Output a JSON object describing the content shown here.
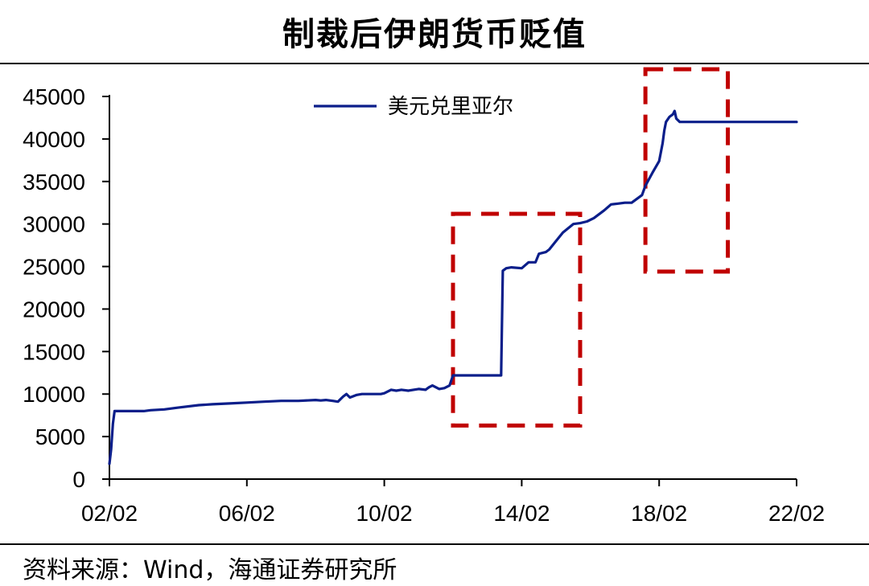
{
  "header": {
    "title": "制裁后伊朗货币贬值"
  },
  "footer": {
    "source": "资料来源：Wind，海通证券研究所"
  },
  "colors": {
    "series": "#0b1e8a",
    "highlight_box": "#c00000",
    "axis": "#000000"
  },
  "chart_data": {
    "type": "line",
    "title": "制裁后伊朗货币贬值",
    "xlabel": "",
    "ylabel": "",
    "ylim": [
      0,
      45000
    ],
    "yticks": [
      0,
      5000,
      10000,
      15000,
      20000,
      25000,
      30000,
      35000,
      40000,
      45000
    ],
    "ytick_labels": [
      "0",
      "5000",
      "10000",
      "15000",
      "20000",
      "25000",
      "30000",
      "35000",
      "40000",
      "45000"
    ],
    "xlim": [
      2,
      22
    ],
    "xticks": [
      2,
      6,
      10,
      14,
      18,
      22
    ],
    "xtick_labels": [
      "02/02",
      "06/02",
      "10/02",
      "14/02",
      "18/02",
      "22/02"
    ],
    "grid": false,
    "legend": "top-center",
    "series": [
      {
        "name": "美元兑里亚尔",
        "x": [
          2.0,
          2.05,
          2.1,
          2.15,
          2.25,
          3.0,
          3.2,
          3.6,
          4.0,
          4.6,
          5.0,
          5.5,
          6.0,
          6.5,
          7.0,
          7.5,
          8.0,
          8.15,
          8.3,
          8.5,
          8.65,
          8.8,
          8.9,
          9.0,
          9.2,
          9.35,
          9.5,
          9.7,
          9.9,
          10.0,
          10.2,
          10.35,
          10.5,
          10.7,
          11.0,
          11.2,
          11.3,
          11.4,
          11.6,
          11.75,
          11.9,
          12.0,
          12.2,
          13.4,
          13.45,
          13.55,
          13.7,
          14.0,
          14.2,
          14.4,
          14.5,
          14.7,
          14.8,
          14.9,
          15.0,
          15.2,
          15.5,
          15.7,
          15.9,
          16.1,
          16.4,
          16.6,
          16.8,
          17.0,
          17.2,
          17.5,
          17.6,
          17.8,
          18.0,
          18.1,
          18.15,
          18.2,
          18.3,
          18.4,
          18.45,
          18.5,
          18.6,
          19.0,
          20.0,
          21.0,
          22.0
        ],
        "y": [
          1800,
          3500,
          6500,
          8000,
          8000,
          8000,
          8100,
          8200,
          8400,
          8700,
          8800,
          8900,
          9000,
          9100,
          9200,
          9200,
          9300,
          9250,
          9300,
          9200,
          9100,
          9700,
          10000,
          9600,
          9900,
          10000,
          10000,
          10000,
          10000,
          10100,
          10500,
          10400,
          10500,
          10400,
          10600,
          10500,
          10800,
          11000,
          10600,
          10700,
          11000,
          12200,
          12200,
          12200,
          24500,
          24800,
          24900,
          24800,
          25500,
          25500,
          26500,
          26700,
          27000,
          27500,
          28000,
          29000,
          30000,
          30100,
          30300,
          30700,
          31600,
          32300,
          32400,
          32500,
          32500,
          33400,
          34500,
          36000,
          37400,
          39500,
          41000,
          42000,
          42600,
          42900,
          43300,
          42400,
          42000,
          42000,
          42000,
          42000,
          42000
        ]
      }
    ],
    "annotations": [
      {
        "type": "dashed-box",
        "x": [
          12.0,
          15.7
        ],
        "y": [
          6300,
          31200
        ]
      },
      {
        "type": "dashed-box",
        "x": [
          17.6,
          20.0
        ],
        "y": [
          24400,
          48200
        ]
      }
    ]
  }
}
